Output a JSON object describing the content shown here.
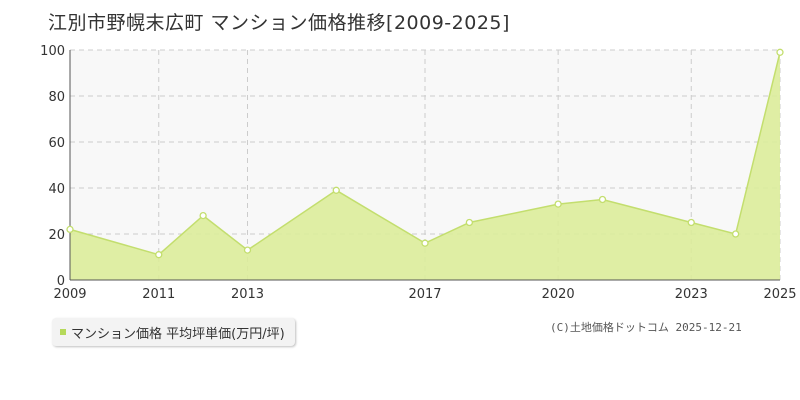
{
  "title": "江別市野幌末広町 マンション価格推移[2009-2025]",
  "legend_label": "マンション価格 平均坪単価(万円/坪)",
  "credit": "(C)土地価格ドットコム 2025-12-21",
  "colors": {
    "fill": "#dcec9a",
    "line": "#c3de6e",
    "legend_swatch": "#b5d95a",
    "plot_bg": "#f8f8f8",
    "grid": "#cccccc"
  },
  "chart_data": {
    "type": "area",
    "x": [
      2009,
      2011,
      2012,
      2013,
      2015,
      2017,
      2018,
      2020,
      2021,
      2023,
      2024,
      2025
    ],
    "values": [
      22,
      11,
      28,
      13,
      39,
      16,
      25,
      33,
      35,
      25,
      20,
      99
    ],
    "xticks": [
      "2009",
      "2011",
      "2013",
      "2017",
      "2020",
      "2023",
      "2025"
    ],
    "ylim": [
      0,
      100
    ],
    "yticks": [
      "0",
      "20",
      "40",
      "60",
      "80",
      "100"
    ],
    "grid": true
  }
}
